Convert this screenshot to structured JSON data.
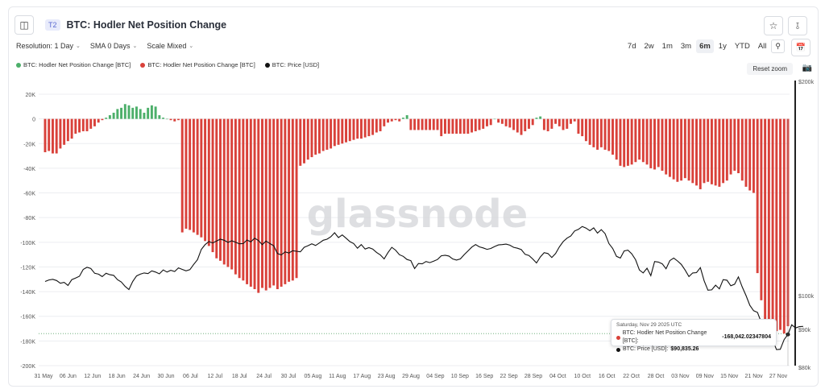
{
  "header": {
    "tier_badge": "T2",
    "title": "BTC: Hodler Net Position Change"
  },
  "controls": {
    "resolution": "Resolution: 1 Day",
    "sma": "SMA 0 Days",
    "scale": "Scale Mixed"
  },
  "ranges": [
    "7d",
    "2w",
    "1m",
    "3m",
    "6m",
    "1y",
    "YTD",
    "All"
  ],
  "active_range": "6m",
  "reset_zoom_label": "Reset zoom",
  "watermark": "glassnode",
  "tooltip": {
    "date": "Saturday, Nov 29 2025 UTC",
    "row1_label": "BTC: Hodler Net Position Change [BTC]:",
    "row1_value": "-168,042.02347804",
    "row2_label": "BTC: Price [USD]:",
    "row2_value": "$90,835.26"
  },
  "colors": {
    "positive": "#4caf6a",
    "negative": "#d9413a",
    "price": "#111111",
    "grid": "#eceef1",
    "tooltip_dot_negative": "#d9413a",
    "tooltip_dot_price": "#111111"
  },
  "chart_data": {
    "type": "bar",
    "legend": [
      {
        "name": "BTC: Hodler Net Position Change [BTC]",
        "color": "#4caf6a"
      },
      {
        "name": "BTC: Hodler Net Position Change [BTC]",
        "color": "#d9413a"
      },
      {
        "name": "BTC: Price [USD]",
        "color": "#111111"
      }
    ],
    "legend_position": "top-left",
    "x_ticks": [
      "31 May",
      "06 Jun",
      "12 Jun",
      "18 Jun",
      "24 Jun",
      "30 Jun",
      "06 Jul",
      "12 Jul",
      "18 Jul",
      "24 Jul",
      "30 Jul",
      "05 Aug",
      "11 Aug",
      "17 Aug",
      "23 Aug",
      "29 Aug",
      "04 Sep",
      "10 Sep",
      "16 Sep",
      "22 Sep",
      "28 Sep",
      "04 Oct",
      "10 Oct",
      "16 Oct",
      "22 Oct",
      "28 Oct",
      "03 Nov",
      "09 Nov",
      "15 Nov",
      "21 Nov",
      "27 Nov"
    ],
    "x_range": [
      "2025-05-31",
      "2025-11-29"
    ],
    "y_left": {
      "ticks": [
        "20K",
        "0",
        "-20K",
        "-40K",
        "-60K",
        "-80K",
        "-100K",
        "-120K",
        "-140K",
        "-160K",
        "-180K",
        "-200K"
      ],
      "range": [
        -200000,
        20000
      ]
    },
    "y_right": {
      "ticks": [
        "$200k",
        "$100k",
        "$90k",
        "$80k"
      ],
      "scale": "log",
      "range": [
        80000,
        200000
      ]
    },
    "grid": true,
    "series": [
      {
        "name": "BTC: Hodler Net Position Change [BTC]",
        "type": "bar",
        "start_date": "2025-05-31",
        "values": [
          -27000,
          -26000,
          -28000,
          -28000,
          -24000,
          -21000,
          -18000,
          -16000,
          -12000,
          -11000,
          -10000,
          -10000,
          -8000,
          -6000,
          -3000,
          -1000,
          1000,
          3000,
          5000,
          8000,
          9000,
          12000,
          11000,
          9000,
          10000,
          8000,
          5000,
          9000,
          11000,
          10000,
          3000,
          1000,
          0,
          -1000,
          -2000,
          -1000,
          -92000,
          -89000,
          -90000,
          -92000,
          -94000,
          -96000,
          -99000,
          -103000,
          -108000,
          -113000,
          -115000,
          -118000,
          -120000,
          -122000,
          -126000,
          -129000,
          -131000,
          -134000,
          -136000,
          -138000,
          -141000,
          -137000,
          -139000,
          -137000,
          -135000,
          -138000,
          -136000,
          -134000,
          -132000,
          -131000,
          -129000,
          -38000,
          -36000,
          -33000,
          -31000,
          -29000,
          -28000,
          -26000,
          -25000,
          -24000,
          -22000,
          -21000,
          -20000,
          -19000,
          -18000,
          -17000,
          -16000,
          -16000,
          -15000,
          -14000,
          -13000,
          -11000,
          -10000,
          -6000,
          -3000,
          -2000,
          -1000,
          -2000,
          1000,
          3000,
          -9000,
          -9000,
          -9000,
          -9000,
          -9000,
          -9000,
          -9000,
          -9000,
          -14000,
          -12000,
          -12000,
          -12000,
          -12000,
          -12000,
          -12000,
          -12000,
          -11000,
          -10000,
          -9000,
          -8000,
          -6000,
          -5000,
          0,
          -3000,
          -4000,
          -6000,
          -7000,
          -9000,
          -11000,
          -13000,
          -10000,
          -8000,
          -5000,
          1000,
          2000,
          -9000,
          -10000,
          -8000,
          -4000,
          -6000,
          -9000,
          -8000,
          -4000,
          -2000,
          -12000,
          -14000,
          -18000,
          -21000,
          -23000,
          -25000,
          -23000,
          -25000,
          -26000,
          -29000,
          -33000,
          -38000,
          -39000,
          -38000,
          -37000,
          -35000,
          -33000,
          -35000,
          -37000,
          -40000,
          -41000,
          -39000,
          -42000,
          -45000,
          -47000,
          -49000,
          -51000,
          -50000,
          -48000,
          -50000,
          -52000,
          -54000,
          -57000,
          -52000,
          -51000,
          -53000,
          -54000,
          -55000,
          -52000,
          -50000,
          -45000,
          -42000,
          -44000,
          -50000,
          -55000,
          -58000,
          -60000,
          -125000,
          -147000,
          -168000,
          -170000,
          -173000,
          -172000,
          -171000,
          -174000,
          -168042
        ]
      },
      {
        "name": "BTC: Price [USD]",
        "type": "line",
        "axis": "right",
        "start_date": "2025-05-31",
        "values": [
          104500,
          105000,
          105200,
          104800,
          103900,
          104200,
          103200,
          105100,
          105600,
          106200,
          108500,
          109200,
          108800,
          107200,
          106900,
          106100,
          107200,
          106700,
          106500,
          105100,
          104300,
          102900,
          101900,
          104500,
          106300,
          106900,
          107300,
          107100,
          108000,
          107600,
          107000,
          108300,
          107600,
          108200,
          107800,
          109000,
          108500,
          108000,
          108400,
          110200,
          111800,
          115500,
          117200,
          118300,
          117800,
          118500,
          119200,
          118800,
          118000,
          118600,
          118100,
          117500,
          117600,
          118900,
          118200,
          119600,
          118700,
          117200,
          118500,
          117600,
          116800,
          114000,
          113500,
          114600,
          114200,
          115000,
          114800,
          114600,
          116200,
          116800,
          117500,
          116900,
          117800,
          118800,
          119200,
          120100,
          121600,
          119800,
          120800,
          119600,
          118300,
          117600,
          115900,
          117200,
          115600,
          116100,
          115600,
          114400,
          113500,
          112100,
          114300,
          116200,
          115200,
          113600,
          113000,
          111900,
          111500,
          108800,
          110500,
          110400,
          111200,
          110800,
          111300,
          111900,
          113200,
          113400,
          113100,
          112100,
          111700,
          112100,
          113600,
          114900,
          116300,
          117200,
          116400,
          116000,
          115500,
          115800,
          116500,
          117100,
          117200,
          117400,
          117000,
          116200,
          115900,
          115400,
          113700,
          113300,
          112100,
          110700,
          112800,
          114300,
          114000,
          112600,
          114000,
          116400,
          118300,
          119600,
          120400,
          122300,
          122900,
          124000,
          123400,
          122400,
          123500,
          121500,
          122800,
          121300,
          117600,
          115800,
          113000,
          112400,
          114900,
          115200,
          113900,
          111800,
          108300,
          107300,
          108900,
          106400,
          111200,
          111000,
          110400,
          108700,
          111500,
          112400,
          111400,
          110200,
          108300,
          106100,
          107300,
          107400,
          109100,
          104700,
          101700,
          101800,
          103300,
          102100,
          105100,
          104900,
          103100,
          103600,
          106000,
          102700,
          100000,
          97000,
          95400,
          94900,
          92000,
          91600,
          86900,
          87000,
          84500,
          84600,
          87200,
          88600,
          91300,
          90400,
          90800,
          90835
        ]
      }
    ]
  }
}
